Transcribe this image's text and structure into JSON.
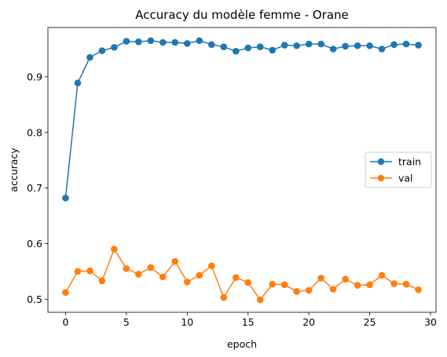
{
  "chart_data": {
    "type": "line",
    "title": "Accuracy du modèle femme - Orane",
    "xlabel": "epoch",
    "ylabel": "accuracy",
    "xlim": [
      -1.45,
      30.45
    ],
    "ylim": [
      0.4765,
      0.9888
    ],
    "x_ticks": [
      0,
      5,
      10,
      15,
      20,
      25,
      30
    ],
    "y_ticks": [
      0.5,
      0.6,
      0.7,
      0.8,
      0.9
    ],
    "y_tick_labels": [
      "0.5",
      "0.6",
      "0.7",
      "0.8",
      "0.9"
    ],
    "grid": false,
    "legend_position": "center-right",
    "x": [
      0,
      1,
      2,
      3,
      4,
      5,
      6,
      7,
      8,
      9,
      10,
      11,
      12,
      13,
      14,
      15,
      16,
      17,
      18,
      19,
      20,
      21,
      22,
      23,
      24,
      25,
      26,
      27,
      28,
      29
    ],
    "series": [
      {
        "name": "train",
        "color": "#1f77b4",
        "values": [
          0.682,
          0.889,
          0.935,
          0.947,
          0.953,
          0.964,
          0.963,
          0.965,
          0.962,
          0.962,
          0.96,
          0.965,
          0.958,
          0.954,
          0.946,
          0.952,
          0.954,
          0.948,
          0.957,
          0.956,
          0.959,
          0.959,
          0.95,
          0.955,
          0.956,
          0.956,
          0.95,
          0.958,
          0.959,
          0.957
        ]
      },
      {
        "name": "val",
        "color": "#ff7f0e",
        "values": [
          0.512,
          0.55,
          0.551,
          0.533,
          0.59,
          0.555,
          0.545,
          0.557,
          0.54,
          0.568,
          0.531,
          0.543,
          0.56,
          0.503,
          0.539,
          0.53,
          0.499,
          0.527,
          0.526,
          0.514,
          0.516,
          0.538,
          0.518,
          0.536,
          0.525,
          0.526,
          0.543,
          0.528,
          0.527,
          0.517
        ]
      }
    ]
  }
}
